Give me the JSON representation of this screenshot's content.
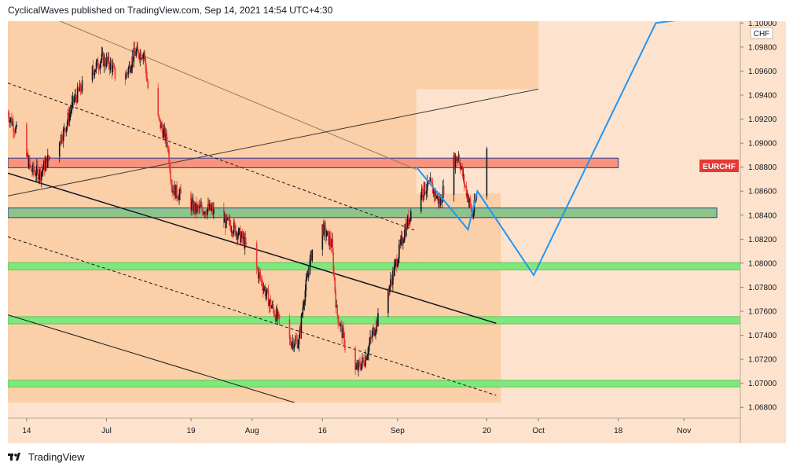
{
  "header": {
    "publisher_line": "CyclicalWaves published on TradingView.com, Sep 14, 2021 14:54 UTC+4:30"
  },
  "footer": {
    "brand": "TradingView",
    "logo_icon": "tradingview-logo-icon"
  },
  "colors": {
    "background": "#fde3cd",
    "range_box": "#fbcfa7",
    "candle_up": "#131722",
    "candle_down": "#e53935",
    "resistance_zone": "#f7937e",
    "support_zone": "#8dc48a",
    "bright_zone": "#7ee87c",
    "projection": "#2196f3",
    "symbol_badge": "#e53935"
  },
  "chart_data": {
    "type": "candlestick",
    "symbol_badge": "EURCHF",
    "currency_label": "CHF",
    "y_axis_ticks": [
      "1.06800",
      "1.07000",
      "1.07200",
      "1.07400",
      "1.07600",
      "1.07800",
      "1.08000",
      "1.08200",
      "1.08400",
      "1.08600",
      "1.08800",
      "1.09000",
      "1.09200",
      "1.09400",
      "1.09600",
      "1.09800",
      "1.10000"
    ],
    "x_axis_ticks": [
      {
        "label": "14",
        "date": "2021-06-14"
      },
      {
        "label": "Jul",
        "date": "2021-07-01"
      },
      {
        "label": "19",
        "date": "2021-07-19"
      },
      {
        "label": "Aug",
        "date": "2021-08-01"
      },
      {
        "label": "16",
        "date": "2021-08-16"
      },
      {
        "label": "Sep",
        "date": "2021-09-01"
      },
      {
        "label": "20",
        "date": "2021-09-20"
      },
      {
        "label": "Oct",
        "date": "2021-10-01"
      },
      {
        "label": "18",
        "date": "2021-10-18"
      },
      {
        "label": "Nov",
        "date": "2021-11-01"
      }
    ],
    "ylim": [
      1.0671,
      1.10015
    ],
    "xlim": [
      "2021-06-10",
      "2021-11-13"
    ],
    "price_path": [
      [
        "2021-06-10",
        1.0925
      ],
      [
        "2021-06-13",
        1.09
      ],
      [
        "2021-06-15",
        1.0877
      ],
      [
        "2021-06-17",
        1.0875
      ],
      [
        "2021-06-19",
        1.089
      ],
      [
        "2021-06-22",
        1.091
      ],
      [
        "2021-06-24",
        1.0935
      ],
      [
        "2021-06-27",
        1.0955
      ],
      [
        "2021-06-30",
        1.097
      ],
      [
        "2021-07-02",
        1.0965
      ],
      [
        "2021-07-04",
        1.0945
      ],
      [
        "2021-07-07",
        1.0975
      ],
      [
        "2021-07-09",
        1.0975
      ],
      [
        "2021-07-10",
        1.094
      ],
      [
        "2021-07-12",
        1.092
      ],
      [
        "2021-07-14",
        1.09
      ],
      [
        "2021-07-15",
        1.0862
      ],
      [
        "2021-07-18",
        1.0852
      ],
      [
        "2021-07-20",
        1.0845
      ],
      [
        "2021-07-23",
        1.0845
      ],
      [
        "2021-07-26",
        1.0835
      ],
      [
        "2021-07-28",
        1.083
      ],
      [
        "2021-07-30",
        1.082
      ],
      [
        "2021-08-01",
        1.0805
      ],
      [
        "2021-08-03",
        1.0785
      ],
      [
        "2021-08-05",
        1.0765
      ],
      [
        "2021-08-07",
        1.075
      ],
      [
        "2021-08-09",
        1.0735
      ],
      [
        "2021-08-11",
        1.0735
      ],
      [
        "2021-08-12",
        1.077
      ],
      [
        "2021-08-14",
        1.0815
      ],
      [
        "2021-08-16",
        1.083
      ],
      [
        "2021-08-18",
        1.0815
      ],
      [
        "2021-08-19",
        1.076
      ],
      [
        "2021-08-21",
        1.073
      ],
      [
        "2021-08-23",
        1.071
      ],
      [
        "2021-08-25",
        1.072
      ],
      [
        "2021-08-27",
        1.0745
      ],
      [
        "2021-08-29",
        1.0765
      ],
      [
        "2021-08-31",
        1.079
      ],
      [
        "2021-09-02",
        1.082
      ],
      [
        "2021-09-04",
        1.0845
      ],
      [
        "2021-09-06",
        1.086
      ],
      [
        "2021-09-08",
        1.0865
      ],
      [
        "2021-09-10",
        1.085
      ],
      [
        "2021-09-12",
        1.088
      ],
      [
        "2021-09-14",
        1.089
      ],
      [
        "2021-09-15",
        1.087
      ],
      [
        "2021-09-16",
        1.0855
      ],
      [
        "2021-09-17",
        1.084
      ],
      [
        "2021-09-18",
        1.086
      ],
      [
        "2021-09-19",
        1.0885
      ],
      [
        "2021-09-20",
        1.0895
      ]
    ],
    "zones": [
      {
        "name": "resistance",
        "y_top": 1.08875,
        "y_bottom": 1.08795,
        "x_start": "2021-06-10",
        "x_end": "2021-10-18",
        "color": "#f7937e"
      },
      {
        "name": "support-upper",
        "y_top": 1.0846,
        "y_bottom": 1.0838,
        "x_start": "2021-06-10",
        "x_end": "2021-11-08",
        "color": "#8dc48a"
      },
      {
        "name": "support-080",
        "y_top": 1.08005,
        "y_bottom": 1.07945,
        "x_start": "2021-06-10",
        "x_end": "2021-11-13",
        "color": "#7ee87c"
      },
      {
        "name": "support-0755",
        "y_top": 1.07555,
        "y_bottom": 1.07495,
        "x_start": "2021-06-10",
        "x_end": "2021-11-13",
        "color": "#7ee87c"
      },
      {
        "name": "support-0700",
        "y_top": 1.07025,
        "y_bottom": 1.0697,
        "x_start": "2021-06-10",
        "x_end": "2021-11-13",
        "color": "#7ee87c"
      }
    ],
    "range_boxes": [
      {
        "y_top": 1.10015,
        "y_bottom": 1.0945,
        "x_start": "2021-06-10",
        "x_end": "2021-10-01",
        "color": "#fbcfa7"
      },
      {
        "y_top": 1.0945,
        "y_bottom": 1.0684,
        "x_start": "2021-06-10",
        "x_end": "2021-09-05",
        "color": "#fbcfa7"
      },
      {
        "y_top": 1.0858,
        "y_bottom": 1.0684,
        "x_start": "2021-09-05",
        "x_end": "2021-09-23",
        "color": "#fbcfa7"
      }
    ],
    "trend_lines": [
      {
        "from": [
          "2021-06-19",
          1.1005
        ],
        "to": [
          "2021-09-05",
          1.0878
        ],
        "color": "#8a7a6a",
        "width": 1,
        "dash": false
      },
      {
        "from": [
          "2021-06-10",
          1.0856
        ],
        "to": [
          "2021-10-01",
          1.0945
        ],
        "color": "#3a3a3a",
        "width": 1,
        "dash": false
      },
      {
        "from": [
          "2021-06-10",
          1.0875
        ],
        "to": [
          "2021-09-22",
          1.075
        ],
        "color": "#131722",
        "width": 1.5,
        "dash": false
      },
      {
        "from": [
          "2021-06-10",
          1.095
        ],
        "to": [
          "2021-09-05",
          1.0827
        ],
        "color": "#131722",
        "width": 1,
        "dash": true
      },
      {
        "from": [
          "2021-06-10",
          1.0822
        ],
        "to": [
          "2021-09-22",
          1.069
        ],
        "color": "#131722",
        "width": 1,
        "dash": true
      },
      {
        "from": [
          "2021-06-10",
          1.0757
        ],
        "to": [
          "2021-08-10",
          1.0684
        ],
        "color": "#131722",
        "width": 1,
        "dash": false
      }
    ],
    "projection_path": [
      [
        "2021-09-05",
        1.088
      ],
      [
        "2021-09-16",
        1.0828
      ],
      [
        "2021-09-18",
        1.086
      ],
      [
        "2021-09-30",
        1.079
      ],
      [
        "2021-10-26",
        1.1
      ],
      [
        "2021-11-01",
        1.1003
      ]
    ],
    "grid": false,
    "legend": "none"
  }
}
